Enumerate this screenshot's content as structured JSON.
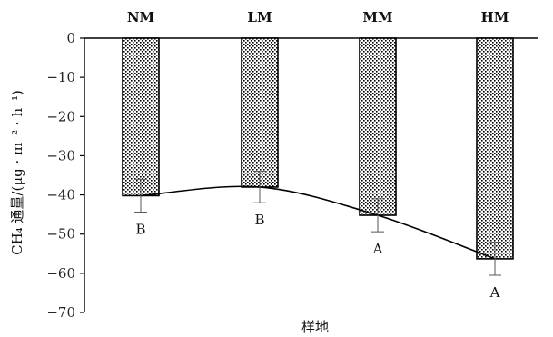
{
  "chart_data": {
    "type": "bar",
    "categories": [
      "NM",
      "LM",
      "MM",
      "HM"
    ],
    "values": [
      -40.2,
      -38.0,
      -45.2,
      -56.3
    ],
    "error": [
      4.2,
      4.0,
      4.2,
      4.2
    ],
    "significance": [
      "B",
      "B",
      "A",
      "A"
    ],
    "trend_line": {
      "type": "smooth-curve",
      "shown": true
    },
    "ylim": [
      -70,
      0
    ],
    "yticks": [
      0,
      -10,
      -20,
      -30,
      -40,
      -50,
      -60,
      -70
    ],
    "ylabel": "CH₄ 通量/(μg · m⁻² · h⁻¹)",
    "xlabel": "样地",
    "title": "",
    "grid": false,
    "bar_pattern": "dotted-hatch",
    "colors": {
      "bar_fill": "#ffffff",
      "bar_dots": "#000000",
      "axis": "#000000"
    }
  }
}
